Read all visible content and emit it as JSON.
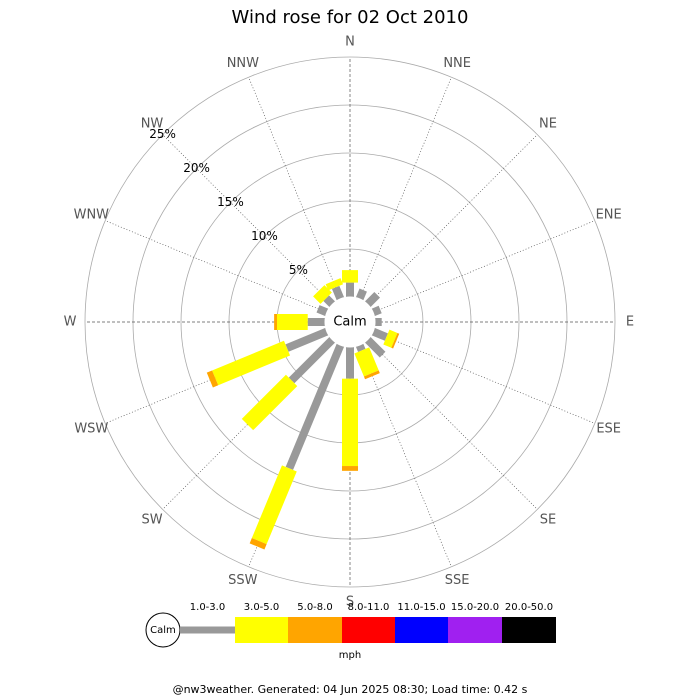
{
  "chart_data": {
    "type": "windrose",
    "title": "Wind rose for 02 Oct 2010",
    "directions": [
      "N",
      "NNE",
      "NE",
      "ENE",
      "E",
      "ESE",
      "SE",
      "SSE",
      "S",
      "SSW",
      "SW",
      "WSW",
      "W",
      "WNW",
      "NW",
      "NNW"
    ],
    "rlim": [
      0,
      25
    ],
    "rticks": [
      {
        "value": 5,
        "label": "5%"
      },
      {
        "value": 10,
        "label": "10%"
      },
      {
        "value": 15,
        "label": "15%"
      },
      {
        "value": 20,
        "label": "20%"
      },
      {
        "value": 25,
        "label": "25%"
      }
    ],
    "calm_label": "Calm",
    "unit": "mph",
    "series": [
      {
        "name": "1.0-3.0",
        "color": "#999999",
        "values": [
          1.5,
          1.0,
          1.4,
          0.8,
          0.7,
          1.5,
          2.2,
          0.6,
          3.3,
          13.9,
          6.0,
          4.5,
          1.8,
          1.0,
          0.9,
          1.3
        ]
      },
      {
        "name": "3.0-5.0",
        "color": "#ffff00",
        "values": [
          1.3,
          0,
          0,
          0,
          0,
          0.9,
          0,
          2.6,
          9.1,
          8.2,
          6.5,
          8.1,
          3.2,
          0,
          1.1,
          0.7
        ]
      },
      {
        "name": "5.0-8.0",
        "color": "#ffa500",
        "values": [
          0,
          0,
          0,
          0,
          0,
          0.2,
          0,
          0.3,
          0.5,
          0.6,
          0,
          0.6,
          0.3,
          0,
          0,
          0
        ]
      },
      {
        "name": "8.0-11.0",
        "color": "#ff0000",
        "values": [
          0,
          0,
          0,
          0,
          0,
          0,
          0,
          0,
          0,
          0,
          0,
          0,
          0,
          0,
          0,
          0
        ]
      },
      {
        "name": "11.0-15.0",
        "color": "#0000ff",
        "values": [
          0,
          0,
          0,
          0,
          0,
          0,
          0,
          0,
          0,
          0,
          0,
          0,
          0,
          0,
          0,
          0
        ]
      },
      {
        "name": "15.0-20.0",
        "color": "#a020f0",
        "values": [
          0,
          0,
          0,
          0,
          0,
          0,
          0,
          0,
          0,
          0,
          0,
          0,
          0,
          0,
          0,
          0
        ]
      },
      {
        "name": "20.0-50.0",
        "color": "#000000",
        "values": [
          0,
          0,
          0,
          0,
          0,
          0,
          0,
          0,
          0,
          0,
          0,
          0,
          0,
          0,
          0,
          0
        ]
      }
    ]
  },
  "footer": "@nw3weather. Generated: 04 Jun 2025 08:30; Load time: 0.42 s"
}
